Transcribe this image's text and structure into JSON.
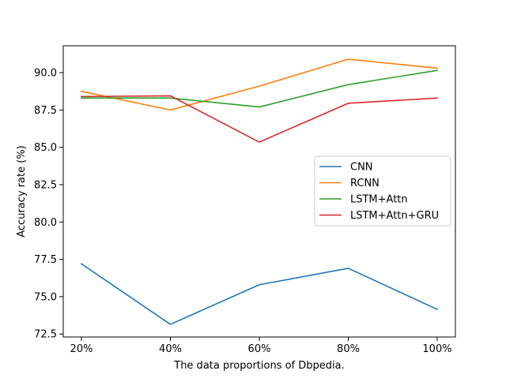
{
  "chart_data": {
    "type": "line",
    "title": "",
    "xlabel": "The data proportions of Dbpedia.",
    "ylabel": "Accuracy rate (%)",
    "categories": [
      "20%",
      "40%",
      "60%",
      "80%",
      "100%"
    ],
    "ylim": [
      72.3,
      91.8
    ],
    "yticks": [
      72.5,
      75.0,
      77.5,
      80.0,
      82.5,
      85.0,
      87.5,
      90.0
    ],
    "ytick_labels": [
      "72.5",
      "75.0",
      "77.5",
      "80.0",
      "82.5",
      "85.0",
      "87.5",
      "90.0"
    ],
    "grid": false,
    "legend_position": "center-right",
    "series": [
      {
        "name": "CNN",
        "color": "#1f77b4",
        "values": [
          77.2,
          73.15,
          75.8,
          76.9,
          74.15
        ]
      },
      {
        "name": "RCNN",
        "color": "#ff7f0e",
        "values": [
          88.75,
          87.5,
          89.1,
          90.9,
          90.3
        ]
      },
      {
        "name": "LSTM+Attn",
        "color": "#2ca02c",
        "values": [
          88.3,
          88.3,
          87.7,
          89.2,
          90.15
        ]
      },
      {
        "name": "LSTM+Attn+GRU",
        "color": "#d62728",
        "values": [
          88.4,
          88.45,
          85.35,
          87.95,
          88.3
        ]
      }
    ]
  }
}
